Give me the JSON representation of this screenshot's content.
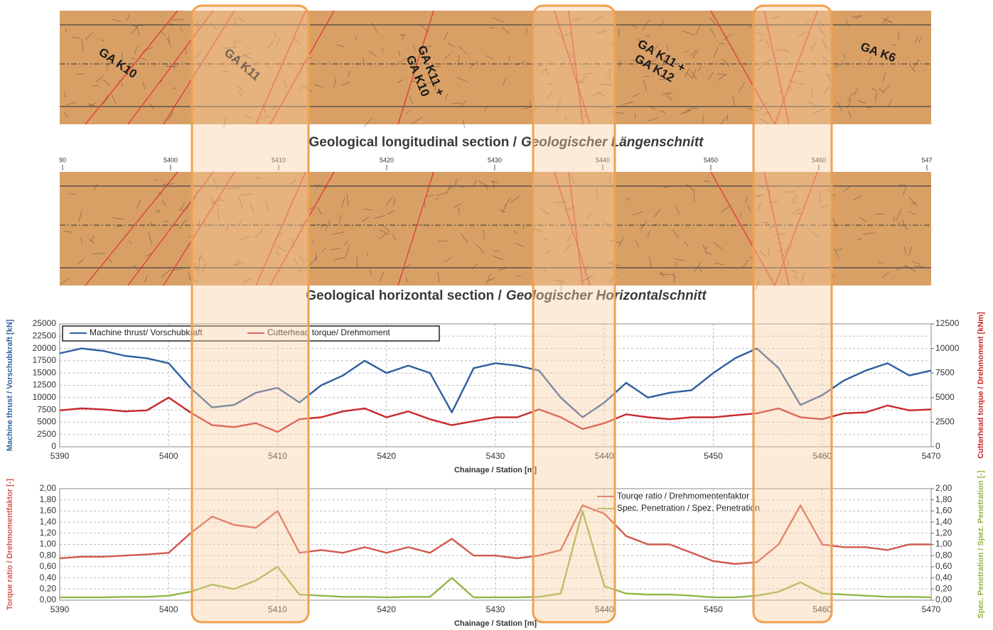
{
  "geology": {
    "captions": [
      [
        "Geological longitudinal section /",
        "Geologischer Längenschnitt"
      ],
      [
        "Geological horizontal section /",
        "Geologischer Horizontalschnitt"
      ]
    ],
    "labels": [
      [
        "GA K10"
      ],
      [
        "GA K11"
      ],
      [
        "GA K11 +",
        "GA K10"
      ],
      [
        "GA K11 +",
        "GA K12"
      ],
      [
        "GA K6"
      ]
    ],
    "scale": [
      {
        "value": 5390,
        "label": "90"
      },
      5400,
      5410,
      5420,
      5430,
      5440,
      5450,
      5460,
      {
        "value": 5470,
        "label": "547"
      }
    ]
  },
  "chart_data": [
    {
      "type": "line",
      "x": [
        5390,
        5392,
        5394,
        5396,
        5398,
        5400,
        5402,
        5404,
        5406,
        5408,
        5410,
        5412,
        5414,
        5416,
        5418,
        5420,
        5422,
        5424,
        5426,
        5428,
        5430,
        5432,
        5434,
        5436,
        5438,
        5440,
        5442,
        5444,
        5446,
        5448,
        5450,
        5452,
        5454,
        5456,
        5458,
        5460,
        5462,
        5464,
        5466,
        5468,
        5470
      ],
      "series": [
        {
          "name": "Machine thrust/ Vorschubkraft",
          "color": "#2e5f9e",
          "values": [
            19000,
            20000,
            19500,
            18500,
            18000,
            17000,
            12000,
            8000,
            8500,
            11000,
            12000,
            9000,
            12500,
            14500,
            17500,
            15000,
            16500,
            15000,
            7000,
            16000,
            17000,
            16500,
            15500,
            10000,
            6000,
            9000,
            13000,
            10000,
            11000,
            11500,
            15000,
            18000,
            20000,
            16000,
            8500,
            10500,
            13500,
            15500,
            17000,
            14500,
            15500
          ]
        },
        {
          "name": "Cutterhead torque/ Drehmoment",
          "color": "#c8282a",
          "axis": "y2",
          "values": [
            3700,
            3900,
            3800,
            3600,
            3700,
            5000,
            3500,
            2200,
            2000,
            2400,
            1500,
            2800,
            3000,
            3600,
            3900,
            3000,
            3600,
            2800,
            2200,
            2600,
            3000,
            3000,
            3800,
            3000,
            1800,
            2400,
            3300,
            3000,
            2800,
            3000,
            3000,
            3200,
            3400,
            3900,
            3000,
            2800,
            3400,
            3500,
            4200,
            3700,
            3800
          ]
        }
      ],
      "xlim": [
        5390,
        5470
      ],
      "xticks": [
        5390,
        5400,
        5410,
        5420,
        5430,
        5440,
        5450,
        5460,
        5470
      ],
      "ylim": [
        0,
        25000
      ],
      "yticks": [
        0,
        2500,
        5000,
        7500,
        10000,
        12500,
        15000,
        17500,
        20000,
        22500,
        25000
      ],
      "y2lim": [
        0,
        12500
      ],
      "y2ticks": [
        0,
        2500,
        5000,
        7500,
        10000,
        12500
      ],
      "xlabel": "Chainage / Station [m]",
      "ylabel": "Machine thrust / Vorschubkraft [kN]",
      "y2label": "Cutterhead torque / Drehmoment [kNm]",
      "grid": true,
      "legend": "upper left"
    },
    {
      "type": "line",
      "x": [
        5390,
        5392,
        5394,
        5396,
        5398,
        5400,
        5402,
        5404,
        5406,
        5408,
        5410,
        5412,
        5414,
        5416,
        5418,
        5420,
        5422,
        5424,
        5426,
        5428,
        5430,
        5432,
        5434,
        5436,
        5438,
        5440,
        5442,
        5444,
        5446,
        5448,
        5450,
        5452,
        5454,
        5456,
        5458,
        5460,
        5462,
        5464,
        5466,
        5468,
        5470
      ],
      "series": [
        {
          "name": "Tourqe ratio / Drehmomentenfaktor",
          "color": "#d2584f",
          "values": [
            0.75,
            0.78,
            0.78,
            0.8,
            0.82,
            0.85,
            1.2,
            1.5,
            1.35,
            1.3,
            1.6,
            0.85,
            0.9,
            0.85,
            0.95,
            0.85,
            0.95,
            0.85,
            1.1,
            0.8,
            0.8,
            0.75,
            0.8,
            0.9,
            1.7,
            1.55,
            1.15,
            1.0,
            1.0,
            0.85,
            0.7,
            0.65,
            0.68,
            1.0,
            1.7,
            1.0,
            0.95,
            0.95,
            0.9,
            1.0,
            1.0
          ]
        },
        {
          "name": "Spec. Penetration / Spez. Penetration",
          "color": "#8fb844",
          "axis": "y2",
          "values": [
            0.05,
            0.05,
            0.05,
            0.06,
            0.06,
            0.08,
            0.15,
            0.28,
            0.2,
            0.35,
            0.6,
            0.1,
            0.08,
            0.06,
            0.06,
            0.05,
            0.06,
            0.06,
            0.4,
            0.05,
            0.05,
            0.05,
            0.06,
            0.12,
            1.6,
            0.25,
            0.12,
            0.1,
            0.1,
            0.08,
            0.05,
            0.05,
            0.08,
            0.15,
            0.32,
            0.12,
            0.1,
            0.08,
            0.06,
            0.06,
            0.05
          ]
        }
      ],
      "xlim": [
        5390,
        5470
      ],
      "xticks": [
        5390,
        5400,
        5410,
        5420,
        5430,
        5440,
        5450,
        5460,
        5470
      ],
      "ylim": [
        0,
        2
      ],
      "yticks": [
        {
          "value": 0,
          "label": "0,00"
        },
        {
          "value": 0.2,
          "label": "0,20"
        },
        {
          "value": 0.4,
          "label": "0,40"
        },
        {
          "value": 0.6,
          "label": "0,60"
        },
        {
          "value": 0.8,
          "label": "0,80"
        },
        {
          "value": 1,
          "label": "1,00"
        },
        {
          "value": 1.2,
          "label": "1,20"
        },
        {
          "value": 1.4,
          "label": "1,40"
        },
        {
          "value": 1.6,
          "label": "1,60"
        },
        {
          "value": 1.8,
          "label": "1,80"
        },
        {
          "value": 2,
          "label": "2,00"
        }
      ],
      "y2lim": [
        0,
        2
      ],
      "y2ticks": [
        {
          "value": 0,
          "label": "0,00"
        },
        {
          "value": 0.2,
          "label": "0,20"
        },
        {
          "value": 0.4,
          "label": "0,40"
        },
        {
          "value": 0.6,
          "label": "0,60"
        },
        {
          "value": 0.8,
          "label": "0,80"
        },
        {
          "value": 1,
          "label": "1,00"
        },
        {
          "value": 1.2,
          "label": "1,20"
        },
        {
          "value": 1.4,
          "label": "1,40"
        },
        {
          "value": 1.6,
          "label": "1,60"
        },
        {
          "value": 1.8,
          "label": "1,80"
        },
        {
          "value": 2,
          "label": "2,00"
        }
      ],
      "xlabel": "Chainage / Station [m]",
      "ylabel": "Torque ratio / Drehmomentfaktor [-]",
      "y2label": "Spec. Penetration / Spez. Penetration [-]",
      "grid": true,
      "legend": "upper right"
    }
  ]
}
